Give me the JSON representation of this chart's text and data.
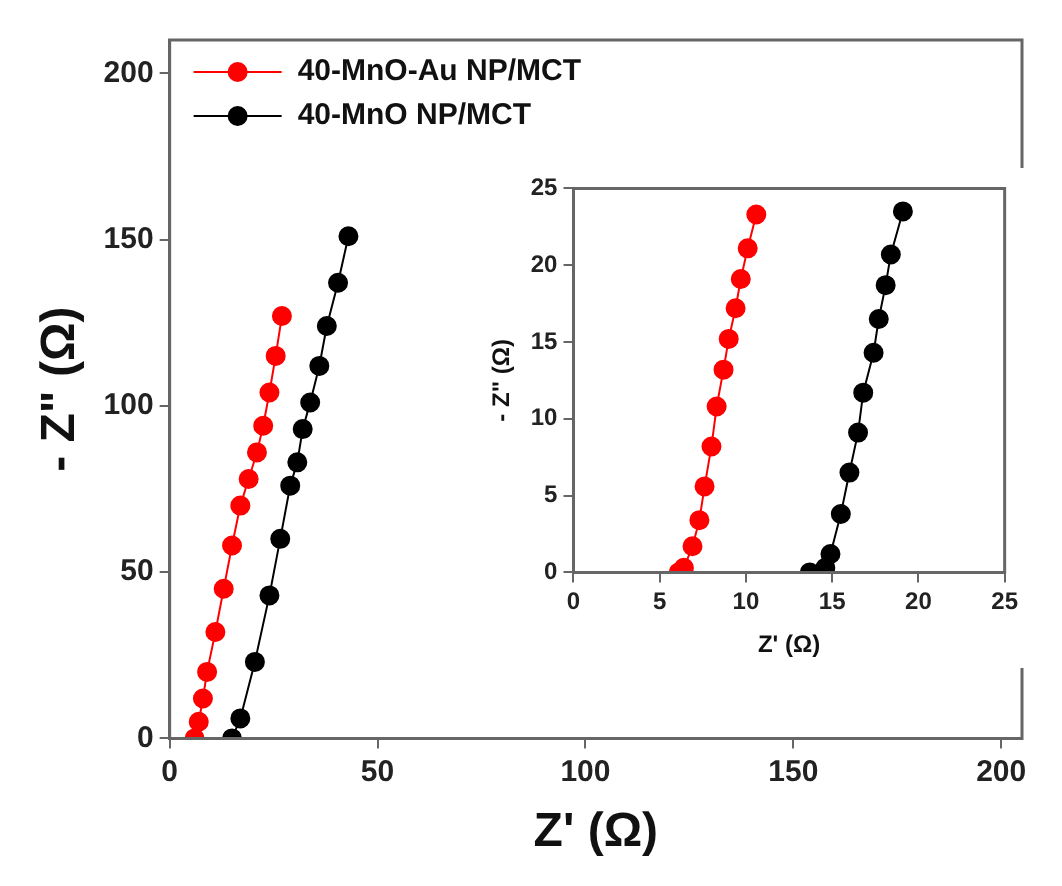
{
  "chart_data": [
    {
      "type": "line",
      "xlabel": "Z' (Ω)",
      "ylabel": "- Z\" (Ω)",
      "xlim": [
        0,
        205
      ],
      "ylim": [
        0,
        210
      ],
      "xticks": [
        0,
        50,
        100,
        150,
        200
      ],
      "yticks": [
        0,
        50,
        100,
        150,
        200
      ],
      "legend": "top left",
      "marker": "circle",
      "series": [
        {
          "name": "40-MnO-Au NP/MCT",
          "color": "#ff0000",
          "x": [
            6,
            7,
            8,
            9,
            11,
            13,
            15,
            17,
            19,
            21,
            22.5,
            24,
            25.5,
            27
          ],
          "values": [
            0,
            5,
            12,
            20,
            32,
            45,
            58,
            70,
            78,
            86,
            94,
            104,
            115,
            127
          ]
        },
        {
          "name": "40-MnO NP/MCT",
          "color": "#000000",
          "x": [
            15,
            17,
            20.5,
            24,
            26.6,
            29,
            30.7,
            32,
            33.8,
            36,
            37.8,
            40.5,
            43
          ],
          "values": [
            0,
            6,
            23,
            43,
            60,
            76,
            83,
            93,
            101,
            112,
            124,
            137,
            151
          ]
        }
      ]
    },
    {
      "type": "line",
      "xlabel": "Z' (Ω)",
      "ylabel": "- Z\" (Ω)",
      "xlim": [
        0,
        25
      ],
      "ylim": [
        0,
        25
      ],
      "xticks": [
        0,
        5,
        10,
        15,
        20,
        25
      ],
      "yticks": [
        0,
        5,
        10,
        15,
        20,
        25
      ],
      "marker": "circle",
      "series": [
        {
          "color": "#ff0000",
          "x": [
            6.1,
            6.4,
            6.9,
            7.3,
            7.6,
            8.0,
            8.3,
            8.7,
            9.0,
            9.4,
            9.7,
            10.1,
            10.6
          ],
          "values": [
            0,
            0.3,
            1.7,
            3.4,
            5.6,
            8.2,
            10.8,
            13.2,
            15.2,
            17.2,
            19.1,
            21.1,
            23.3
          ]
        },
        {
          "color": "#000000",
          "x": [
            13.7,
            14.6,
            14.9,
            15.5,
            16.0,
            16.5,
            16.8,
            17.4,
            17.7,
            18.1,
            18.4,
            19.1
          ],
          "values": [
            0,
            0.3,
            1.2,
            3.8,
            6.5,
            9.1,
            11.7,
            14.3,
            16.5,
            18.7,
            20.7,
            23.5
          ]
        }
      ]
    }
  ]
}
